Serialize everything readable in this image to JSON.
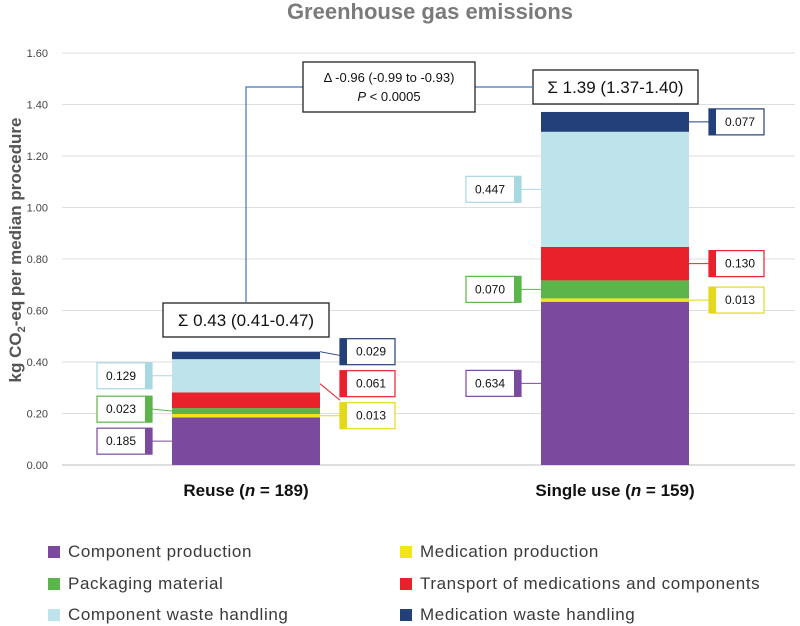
{
  "chart_data": {
    "type": "stacked-bar",
    "title": "Greenhouse gas emissions",
    "ylabel_prefix": "kg CO",
    "ylabel_sub": "2",
    "ylabel_suffix": "-eq per median procedure",
    "ylim": [
      0,
      1.6
    ],
    "yticks": [
      "0.00",
      "0.20",
      "0.40",
      "0.60",
      "0.80",
      "1.00",
      "1.20",
      "1.40",
      "1.60"
    ],
    "categories": [
      {
        "label": "Reuse",
        "n": "189"
      },
      {
        "label": "Single use",
        "n": "159"
      }
    ],
    "series": [
      {
        "name": "Component production",
        "color": "#7b4a9e",
        "values": [
          0.185,
          0.634
        ],
        "labels": [
          "0.185",
          "0.634"
        ]
      },
      {
        "name": "Medication production",
        "color": "#f0e619",
        "values": [
          0.013,
          0.013
        ],
        "labels": [
          "0.013",
          "0.013"
        ]
      },
      {
        "name": "Packaging material",
        "color": "#5cb54a",
        "values": [
          0.023,
          0.07
        ],
        "labels": [
          "0.023",
          "0.070"
        ]
      },
      {
        "name": "Transport of medications and components",
        "color": "#e8212a",
        "values": [
          0.061,
          0.13
        ],
        "labels": [
          "0.061",
          "0.130"
        ]
      },
      {
        "name": "Component waste handling",
        "color": "#bfe3ea",
        "values": [
          0.129,
          0.447
        ],
        "labels": [
          "0.129",
          "0.447"
        ]
      },
      {
        "name": "Medication waste handling",
        "color": "#24407a",
        "values": [
          0.029,
          0.077
        ],
        "labels": [
          "0.029",
          "0.077"
        ]
      }
    ],
    "label_colors": [
      "#7b4a9e",
      "#e3d91a",
      "#5cb54a",
      "#e8212a",
      "#a8d8e2",
      "#24407a"
    ],
    "label_sides": [
      [
        "left",
        "left"
      ],
      [
        "right",
        "right"
      ],
      [
        "left",
        "left"
      ],
      [
        "right",
        "right"
      ],
      [
        "left",
        "left"
      ],
      [
        "right",
        "right"
      ]
    ],
    "totals": [
      "Σ 0.43 (0.41-0.47)",
      "Σ 1.39 (1.37-1.40)"
    ],
    "difference": {
      "line1": "Δ -0.96 (-0.99 to -0.93)",
      "p_symbol": "P",
      "p_rest": " < 0.0005"
    },
    "line_color": "#4472c4"
  },
  "legend": {
    "items": [
      {
        "label": "Component production",
        "color": "#7b4a9e"
      },
      {
        "label": "Medication production",
        "color": "#f0e619"
      },
      {
        "label": "Packaging material",
        "color": "#5cb54a"
      },
      {
        "label": "Transport of medications and components",
        "color": "#e8212a"
      },
      {
        "label": "Component waste handling",
        "color": "#bfe3ea"
      },
      {
        "label": "Medication waste handling",
        "color": "#24407a"
      }
    ]
  }
}
